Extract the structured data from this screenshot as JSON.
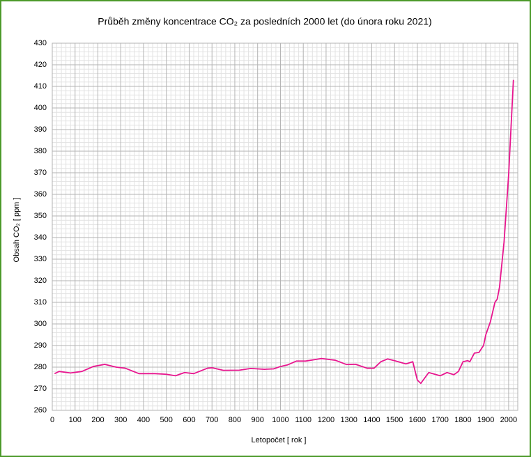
{
  "chart_data": {
    "type": "line",
    "title": "Průběh změny koncentrace CO₂ za posledních 2000 let (do února roku 2021)",
    "x_label": "Letopočet [ rok ]",
    "y_label": "Obsah CO₂ [ ppm ]",
    "x": [
      10,
      30,
      80,
      130,
      180,
      230,
      280,
      320,
      380,
      450,
      500,
      540,
      580,
      620,
      680,
      700,
      750,
      820,
      870,
      930,
      970,
      1000,
      1030,
      1070,
      1110,
      1180,
      1240,
      1290,
      1330,
      1380,
      1410,
      1440,
      1470,
      1500,
      1550,
      1580,
      1600,
      1615,
      1650,
      1700,
      1730,
      1760,
      1780,
      1800,
      1820,
      1830,
      1850,
      1870,
      1890,
      1900,
      1920,
      1940,
      1950,
      1960,
      1980,
      2000,
      2010,
      2021
    ],
    "series": [
      {
        "name": "CO₂",
        "color": "#e8168f",
        "values": [
          277,
          278,
          277.3,
          278,
          280.3,
          281.3,
          280,
          279.5,
          277,
          277,
          276.7,
          276,
          277.5,
          277,
          279.5,
          279.7,
          278.5,
          278.6,
          279.4,
          279,
          279.2,
          280.3,
          281,
          282.8,
          282.8,
          284,
          283.2,
          281.2,
          281.3,
          279.5,
          279.5,
          282.5,
          283.8,
          283,
          281.5,
          282.5,
          274,
          272.5,
          277.5,
          276,
          277.5,
          276.5,
          278,
          282.5,
          283,
          282.5,
          286.5,
          286.8,
          290,
          295,
          301,
          310,
          311.5,
          317,
          338,
          369,
          390,
          413
        ]
      }
    ],
    "xlim": [
      0,
      2040
    ],
    "xticks": [
      0,
      100,
      200,
      300,
      400,
      500,
      600,
      700,
      800,
      900,
      1000,
      1100,
      1200,
      1300,
      1400,
      1500,
      1600,
      1700,
      1800,
      1900,
      2000
    ],
    "ylim": [
      260,
      430
    ],
    "yticks": [
      260,
      270,
      280,
      290,
      300,
      310,
      320,
      330,
      340,
      350,
      360,
      370,
      380,
      390,
      400,
      410,
      420,
      430
    ],
    "grid": true
  }
}
